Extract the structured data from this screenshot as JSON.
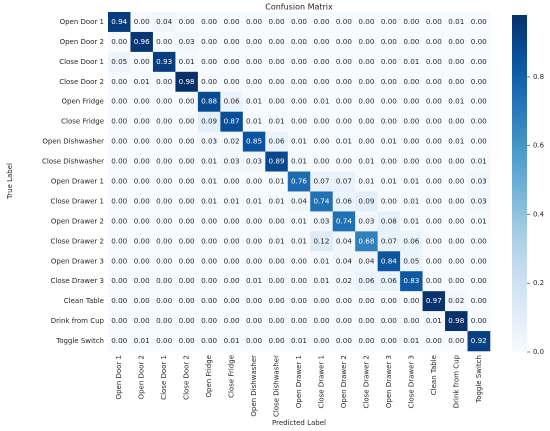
{
  "chart_data": {
    "type": "heatmap",
    "title": "Confusion Matrix",
    "xlabel": "Predicted Label",
    "ylabel": "True Label",
    "colormap": "Blues",
    "categories": [
      "Open Door 1",
      "Open Door 2",
      "Close Door 1",
      "Close Door 2",
      "Open Fridge",
      "Close Fridge",
      "Open Dishwasher",
      "Close Dishwasher",
      "Open Drawer 1",
      "Close Drawer 1",
      "Open Drawer 2",
      "Close Drawer 2",
      "Open Drawer 3",
      "Close Drawer 3",
      "Clean Table",
      "Drink from Cup",
      "Toggle Switch"
    ],
    "values": [
      [
        0.94,
        0,
        0.04,
        0,
        0,
        0,
        0,
        0,
        0,
        0,
        0,
        0,
        0,
        0,
        0,
        0.01,
        0
      ],
      [
        0,
        0.96,
        0,
        0.03,
        0,
        0,
        0,
        0,
        0,
        0,
        0,
        0,
        0,
        0,
        0,
        0,
        0
      ],
      [
        0.05,
        0,
        0.93,
        0.01,
        0,
        0,
        0,
        0,
        0,
        0,
        0,
        0,
        0,
        0.01,
        0,
        0,
        0
      ],
      [
        0,
        0.01,
        0,
        0.98,
        0,
        0,
        0,
        0,
        0,
        0,
        0,
        0,
        0,
        0,
        0,
        0,
        0
      ],
      [
        0,
        0,
        0,
        0,
        0.88,
        0.06,
        0.01,
        0,
        0,
        0.01,
        0,
        0,
        0,
        0,
        0,
        0.01,
        0
      ],
      [
        0,
        0,
        0,
        0,
        0.09,
        0.87,
        0.01,
        0.01,
        0,
        0,
        0,
        0,
        0,
        0,
        0,
        0,
        0
      ],
      [
        0,
        0,
        0,
        0,
        0.03,
        0.02,
        0.85,
        0.06,
        0.01,
        0,
        0.01,
        0,
        0.01,
        0,
        0,
        0.01,
        0
      ],
      [
        0,
        0,
        0,
        0,
        0.01,
        0.03,
        0.03,
        0.89,
        0.01,
        0,
        0,
        0.01,
        0,
        0,
        0,
        0,
        0.01
      ],
      [
        0,
        0,
        0,
        0,
        0.01,
        0,
        0,
        0.01,
        0.76,
        0.07,
        0.07,
        0.01,
        0.01,
        0.01,
        0,
        0,
        0.03
      ],
      [
        0,
        0,
        0,
        0,
        0.01,
        0.01,
        0.01,
        0.01,
        0.04,
        0.74,
        0.06,
        0.09,
        0,
        0.01,
        0,
        0,
        0.03
      ],
      [
        0,
        0,
        0,
        0,
        0,
        0,
        0,
        0,
        0.01,
        0.03,
        0.74,
        0.03,
        0.08,
        0.01,
        0,
        0,
        0.01
      ],
      [
        0,
        0,
        0,
        0,
        0,
        0,
        0,
        0.01,
        0.01,
        0.12,
        0.04,
        0.68,
        0.07,
        0.06,
        0,
        0,
        0
      ],
      [
        0,
        0,
        0,
        0,
        0,
        0,
        0,
        0,
        0,
        0.01,
        0.04,
        0.04,
        0.84,
        0.05,
        0,
        0,
        0
      ],
      [
        0,
        0,
        0,
        0,
        0,
        0,
        0.01,
        0,
        0,
        0.01,
        0.02,
        0.06,
        0.06,
        0.83,
        0,
        0,
        0
      ],
      [
        0,
        0,
        0,
        0,
        0,
        0,
        0,
        0,
        0,
        0,
        0,
        0,
        0,
        0,
        0.97,
        0.02,
        0
      ],
      [
        0,
        0,
        0,
        0,
        0,
        0,
        0,
        0,
        0,
        0,
        0,
        0,
        0,
        0,
        0.01,
        0.98,
        0
      ],
      [
        0,
        0.01,
        0,
        0,
        0,
        0.01,
        0,
        0,
        0.01,
        0,
        0,
        0,
        0,
        0.01,
        0,
        0,
        0.92
      ]
    ],
    "value_labels": [
      [
        "0.94",
        "0.00",
        "0.04",
        "0.00",
        "0.00",
        "0.00",
        "0.00",
        "0.00",
        "0.00",
        "0.00",
        "0.00",
        "0.00",
        "0.00",
        "0.00",
        "0.00",
        "0.01",
        "0.00"
      ],
      [
        "0.00",
        "0.96",
        "0.00",
        "0.03",
        "0.00",
        "0.00",
        "0.00",
        "0.00",
        "0.00",
        "0.00",
        "0.00",
        "0.00",
        "0.00",
        "0.00",
        "0.00",
        "0.00",
        "0.00"
      ],
      [
        "0.05",
        "0.00",
        "0.93",
        "0.01",
        "0.00",
        "0.00",
        "0.00",
        "0.00",
        "0.00",
        "0.00",
        "0.00",
        "0.00",
        "0.00",
        "0.01",
        "0.00",
        "0.00",
        "0.00"
      ],
      [
        "0.00",
        "0.01",
        "0.00",
        "0.98",
        "0.00",
        "0.00",
        "0.00",
        "0.00",
        "0.00",
        "0.00",
        "0.00",
        "0.00",
        "0.00",
        "0.00",
        "0.00",
        "0.00",
        "0.00"
      ],
      [
        "0.00",
        "0.00",
        "0.00",
        "0.00",
        "0.88",
        "0.06",
        "0.01",
        "0.00",
        "0.00",
        "0.01",
        "0.00",
        "0.00",
        "0.00",
        "0.00",
        "0.00",
        "0.01",
        "0.00"
      ],
      [
        "0.00",
        "0.00",
        "0.00",
        "0.00",
        "0.09",
        "0.87",
        "0.01",
        "0.01",
        "0.00",
        "0.00",
        "0.00",
        "0.00",
        "0.00",
        "0.00",
        "0.00",
        "0.00",
        "0.00"
      ],
      [
        "0.00",
        "0.00",
        "0.00",
        "0.00",
        "0.03",
        "0.02",
        "0.85",
        "0.06",
        "0.01",
        "0.00",
        "0.01",
        "0.00",
        "0.01",
        "0.00",
        "0.00",
        "0.01",
        "0.00"
      ],
      [
        "0.00",
        "0.00",
        "0.00",
        "0.00",
        "0.01",
        "0.03",
        "0.03",
        "0.89",
        "0.01",
        "0.00",
        "0.00",
        "0.01",
        "0.00",
        "0.00",
        "0.00",
        "0.00",
        "0.01"
      ],
      [
        "0.00",
        "0.00",
        "0.00",
        "0.00",
        "0.01",
        "0.00",
        "0.00",
        "0.01",
        "0.76",
        "0.07",
        "0.07",
        "0.01",
        "0.01",
        "0.01",
        "0.00",
        "0.00",
        "0.03"
      ],
      [
        "0.00",
        "0.00",
        "0.00",
        "0.00",
        "0.01",
        "0.01",
        "0.01",
        "0.01",
        "0.04",
        "0.74",
        "0.06",
        "0.09",
        "0.00",
        "0.01",
        "0.00",
        "0.00",
        "0.03"
      ],
      [
        "0.00",
        "0.00",
        "0.00",
        "0.00",
        "0.00",
        "0.00",
        "0.00",
        "0.00",
        "0.01",
        "0.03",
        "0.74",
        "0.03",
        "0.08",
        "0.01",
        "0.00",
        "0.00",
        "0.01"
      ],
      [
        "0.00",
        "0.00",
        "0.00",
        "0.00",
        "0.00",
        "0.00",
        "0.00",
        "0.01",
        "0.01",
        "0.12",
        "0.04",
        "0.68",
        "0.07",
        "0.06",
        "0.00",
        "0.00",
        "0.00"
      ],
      [
        "0.00",
        "0.00",
        "0.00",
        "0.00",
        "0.00",
        "0.00",
        "0.00",
        "0.00",
        "0.00",
        "0.01",
        "0.04",
        "0.04",
        "0.84",
        "0.05",
        "0.00",
        "0.00",
        "0.00"
      ],
      [
        "0.00",
        "0.00",
        "0.00",
        "0.00",
        "0.00",
        "0.00",
        "0.01",
        "0.00",
        "0.00",
        "0.01",
        "0.02",
        "0.06",
        "0.06",
        "0.83",
        "0.00",
        "0.00",
        "0.00"
      ],
      [
        "0.00",
        "0.00",
        "0.00",
        "0.00",
        "0.00",
        "0.00",
        "0.00",
        "0.00",
        "0.00",
        "0.00",
        "0.00",
        "0.00",
        "0.00",
        "0.00",
        "0.97",
        "0.02",
        "0.00"
      ],
      [
        "0.00",
        "0.00",
        "0.00",
        "0.00",
        "0.00",
        "0.00",
        "0.00",
        "0.00",
        "0.00",
        "0.00",
        "0.00",
        "0.00",
        "0.00",
        "0.00",
        "0.01",
        "0.98",
        "0.00"
      ],
      [
        "0.00",
        "0.01",
        "0.00",
        "0.00",
        "0.00",
        "0.01",
        "0.00",
        "0.00",
        "0.01",
        "0.00",
        "0.00",
        "0.00",
        "0.00",
        "0.01",
        "0.00",
        "0.00",
        "0.92"
      ]
    ],
    "clim": [
      0,
      0.98
    ],
    "cticks": [
      {
        "value": 0,
        "label": "0.0"
      },
      {
        "value": 0.2,
        "label": "0.2"
      },
      {
        "value": 0.4,
        "label": "0.4"
      },
      {
        "value": 0.6,
        "label": "0.6"
      },
      {
        "value": 0.8,
        "label": "0.8"
      }
    ]
  }
}
